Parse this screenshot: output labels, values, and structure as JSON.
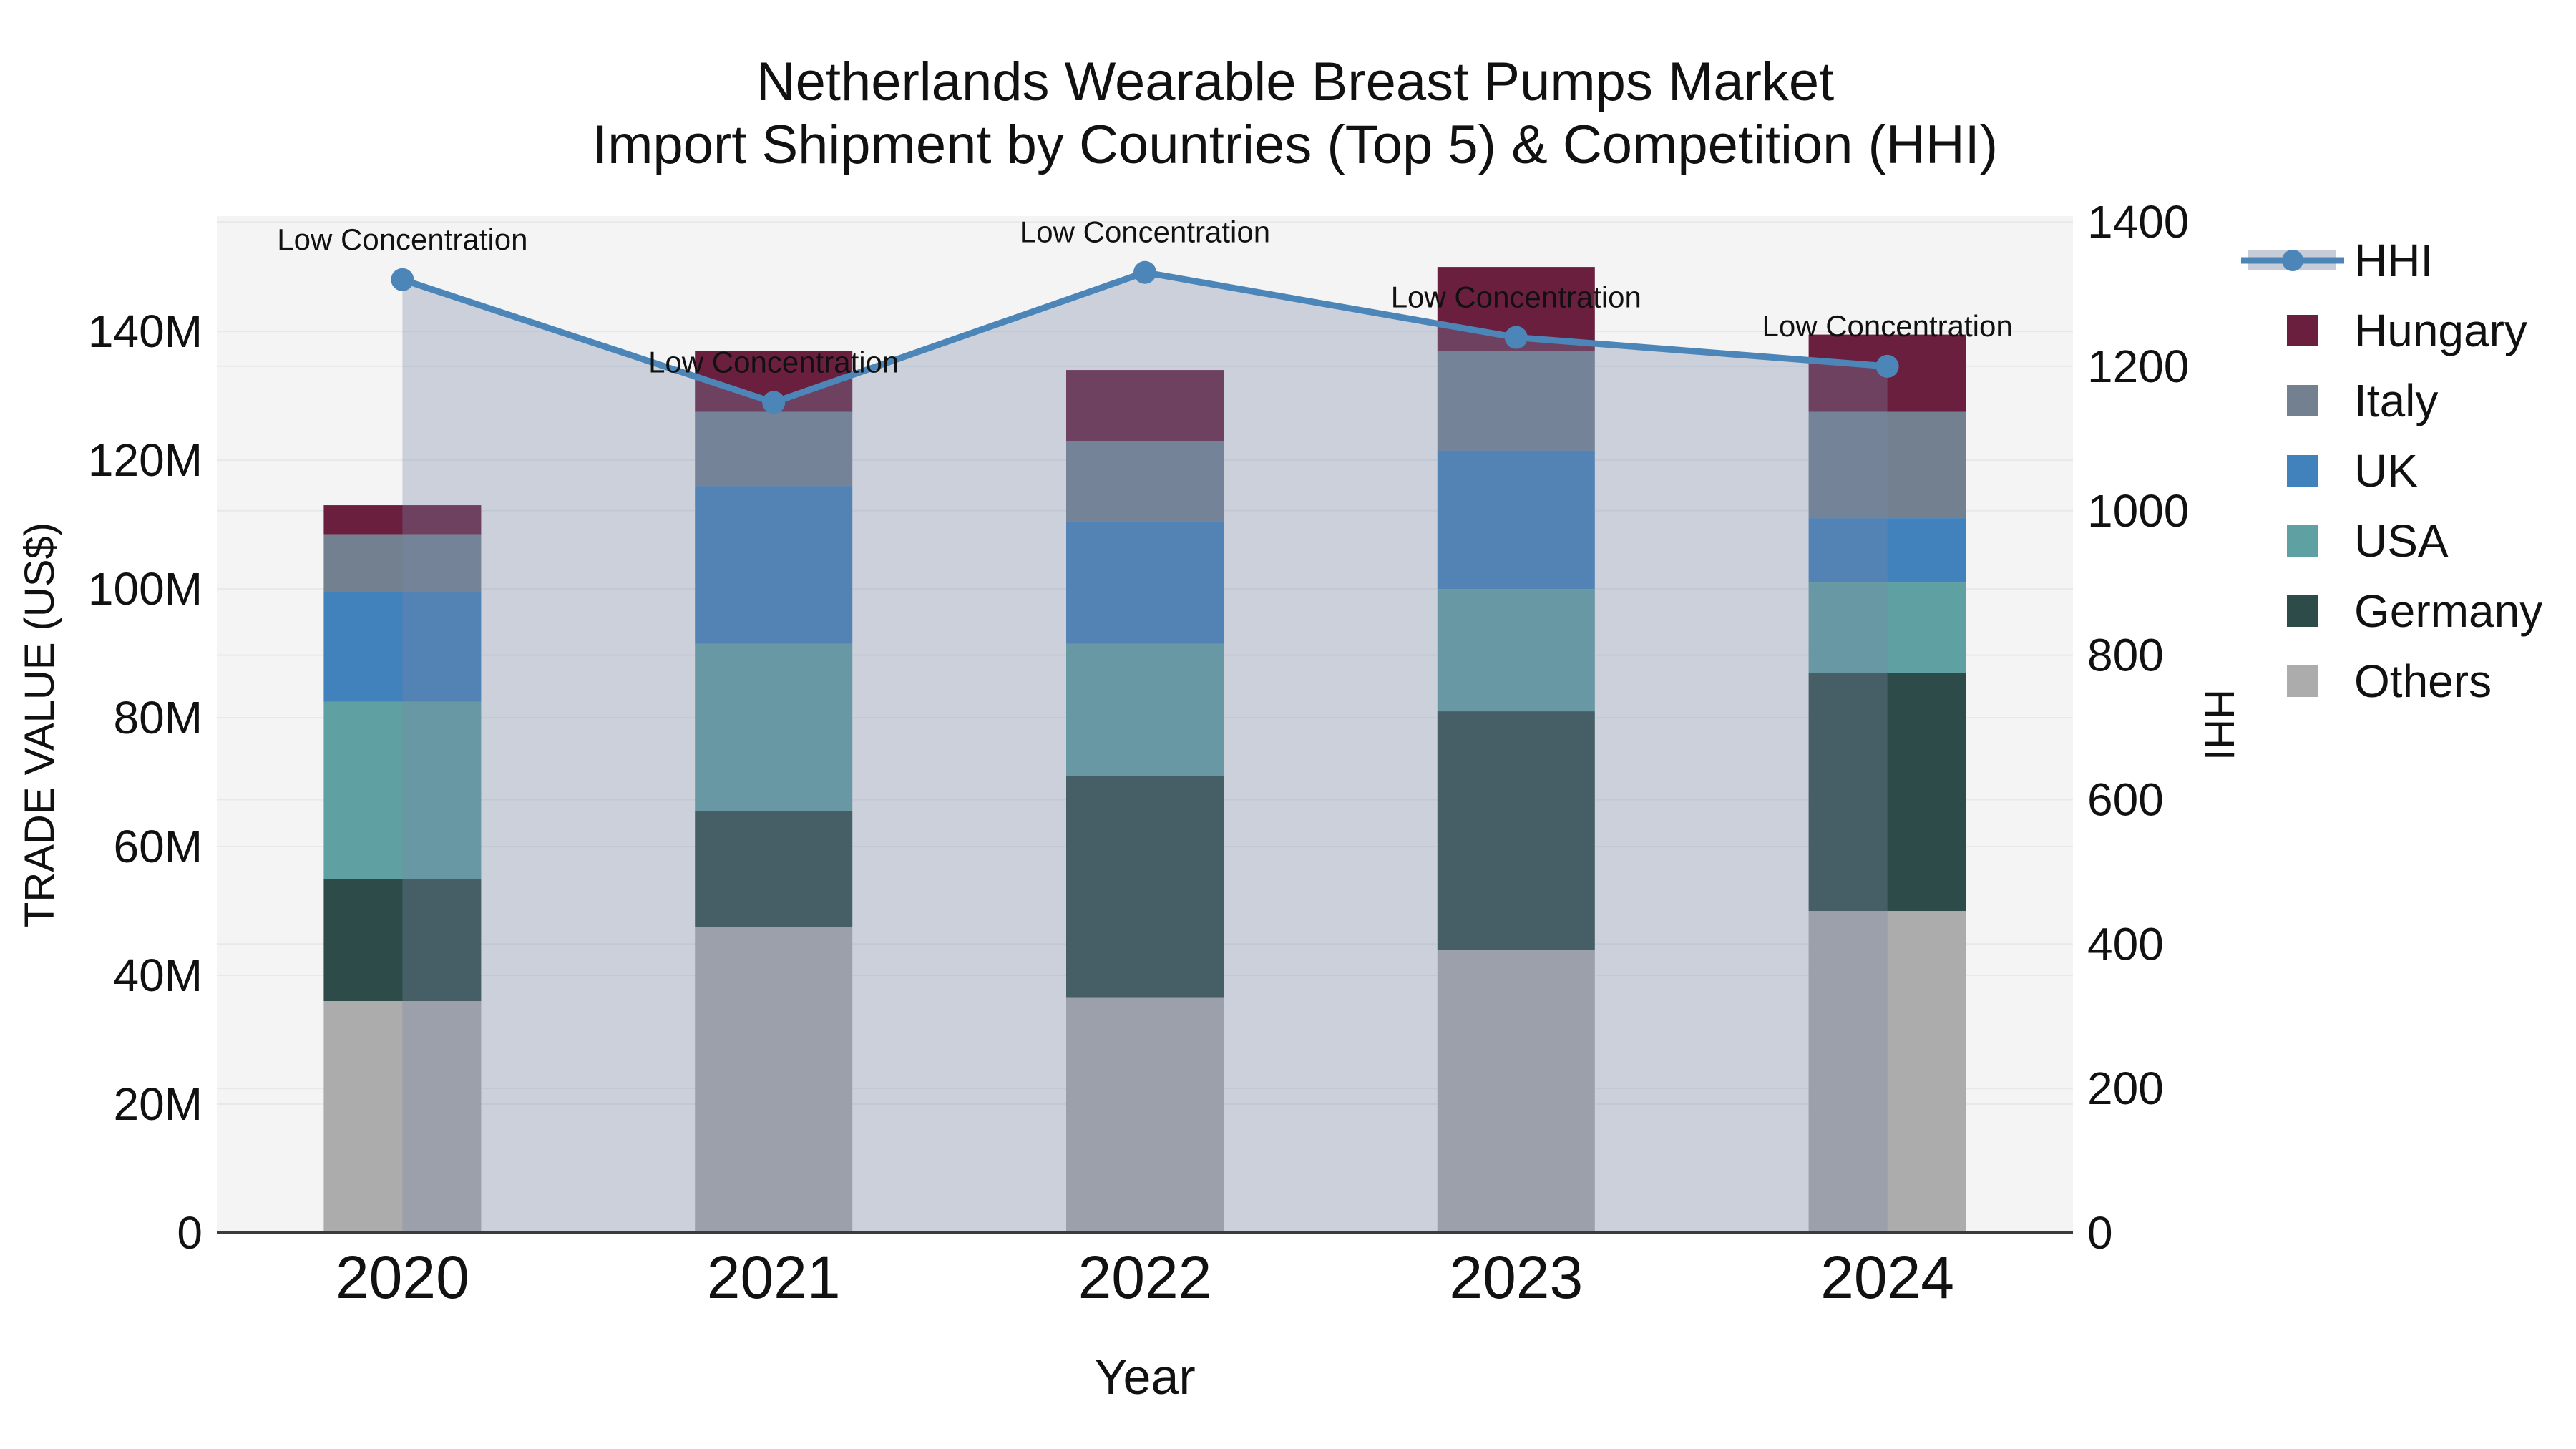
{
  "title": {
    "line1": "Netherlands Wearable Breast Pumps Market",
    "line2": "Import Shipment by Countries (Top 5) & Competition (HHI)"
  },
  "axes": {
    "x_title": "Year",
    "y_left_title": "TRADE VALUE (US$)",
    "y_right_title": "HHI"
  },
  "annotation_text": "Low Concentration",
  "colors": {
    "hhi_line": "#4C86B8",
    "hhi_area_fill": "rgba(122,138,168,0.33)",
    "legend_band": "#C6CCD8",
    "plot_background": "#F4F4F4",
    "gridline": "#E6E8EA",
    "axis_line": "#3B3B3B",
    "text": "#111111",
    "hungary": "#6B1F3E",
    "italy": "#72808F",
    "uk": "#4181BC",
    "usa": "#5FA0A2",
    "germany": "#2D4B48",
    "others": "#ACACAC"
  },
  "legend": {
    "items": [
      {
        "label": "HHI",
        "type": "line",
        "color": "#4C86B8"
      },
      {
        "label": "Hungary",
        "type": "square",
        "color": "#6B1F3E"
      },
      {
        "label": "Italy",
        "type": "square",
        "color": "#72808F"
      },
      {
        "label": "UK",
        "type": "square",
        "color": "#4181BC"
      },
      {
        "label": "USA",
        "type": "square",
        "color": "#5FA0A2"
      },
      {
        "label": "Germany",
        "type": "square",
        "color": "#2D4B48"
      },
      {
        "label": "Others",
        "type": "square",
        "color": "#ACACAC"
      }
    ]
  },
  "chart_data": {
    "type": "bar",
    "subtype": "stacked-bars-with-line-overlay",
    "categories": [
      "2020",
      "2021",
      "2022",
      "2023",
      "2024"
    ],
    "value_unit": "million US$",
    "series": [
      {
        "name": "Others",
        "color": "#ACACAC",
        "values": [
          36,
          47.5,
          36.5,
          44,
          50
        ]
      },
      {
        "name": "Germany",
        "color": "#2D4B48",
        "values": [
          19,
          18,
          34.5,
          37,
          37
        ]
      },
      {
        "name": "USA",
        "color": "#5FA0A2",
        "values": [
          27.5,
          26,
          20.5,
          19,
          14
        ]
      },
      {
        "name": "UK",
        "color": "#4181BC",
        "values": [
          17,
          24.5,
          19,
          21.5,
          10
        ]
      },
      {
        "name": "Italy",
        "color": "#72808F",
        "values": [
          9,
          11.5,
          12.5,
          15.5,
          16.5
        ]
      },
      {
        "name": "Hungary",
        "color": "#6B1F3E",
        "values": [
          4.5,
          9.5,
          11,
          13,
          12
        ]
      }
    ],
    "bar_totals": [
      113,
      137,
      134,
      150,
      139.5
    ],
    "line": {
      "name": "HHI",
      "color": "#4C86B8",
      "axis": "right",
      "values": [
        1320,
        1150,
        1330,
        1240,
        1200
      ],
      "area_fill": "rgba(122,138,168,0.33)"
    },
    "annotations": [
      "Low Concentration",
      "Low Concentration",
      "Low Concentration",
      "Low Concentration",
      "Low Concentration"
    ],
    "xlabel": "Year",
    "ylabel_left": "TRADE VALUE (US$)",
    "ylabel_right": "HHI",
    "y_left": {
      "min": 0,
      "max": 157.9,
      "ticks": [
        0,
        20,
        40,
        60,
        80,
        100,
        120,
        140
      ],
      "tick_labels": [
        "0",
        "20M",
        "40M",
        "60M",
        "80M",
        "100M",
        "120M",
        "140M"
      ]
    },
    "y_right": {
      "min": 0,
      "max": 1408,
      "ticks": [
        0,
        200,
        400,
        600,
        800,
        1000,
        1200,
        1400
      ],
      "tick_labels": [
        "0",
        "200",
        "400",
        "600",
        "800",
        "1000",
        "1200",
        "1400"
      ]
    },
    "grid": true,
    "legend_position": "right"
  }
}
